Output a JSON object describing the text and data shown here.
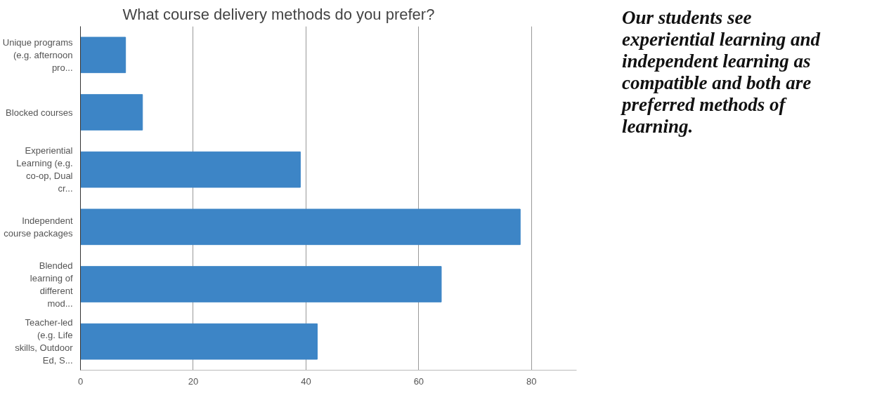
{
  "chart_data": {
    "type": "bar",
    "orientation": "horizontal",
    "title": "What course delivery methods do you prefer?",
    "categories": [
      "Unique programs (e.g. afternoon pro...",
      "Blocked courses",
      "Experiential Learning (e.g. co-op, Dual cr...",
      "Independent course packages",
      "Blended learning of different mod...",
      "Teacher-led (e.g. Life skills, Outdoor Ed, S..."
    ],
    "values": [
      8,
      11,
      39,
      78,
      64,
      42
    ],
    "color": "#3d85c6",
    "xlim": [
      0,
      88
    ],
    "xticks": [
      0,
      20,
      40,
      60,
      80
    ],
    "grid": "x",
    "annotations": [
      "Our students see experiential learning and independent learning as compatible and both are preferred methods of learning."
    ]
  }
}
